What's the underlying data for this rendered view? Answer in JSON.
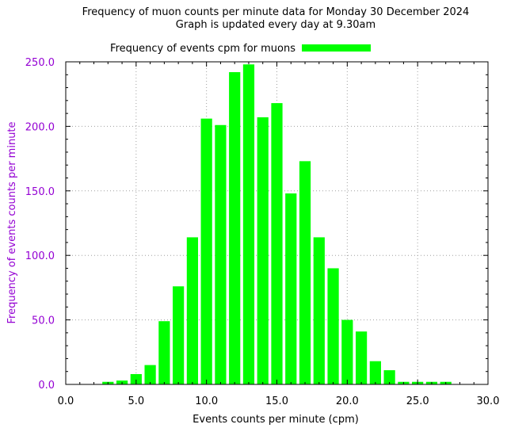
{
  "chart_data": {
    "type": "bar",
    "title": "Frequency of muon counts per minute data for Monday 30 December 2024",
    "subtitle": "Graph is updated every day at 9.30am",
    "xlabel": "Events counts per minute (cpm)",
    "ylabel": "Frequency of events counts per minute",
    "xlim": [
      0,
      30
    ],
    "ylim": [
      0,
      250
    ],
    "xticks": [
      "0.0",
      "5.0",
      "10.0",
      "15.0",
      "20.0",
      "25.0",
      "30.0"
    ],
    "yticks": [
      "0.0",
      "50.0",
      "100.0",
      "150.0",
      "200.0",
      "250.0"
    ],
    "grid": true,
    "legend_position": "top",
    "series": [
      {
        "name": "Frequency of events cpm for muons",
        "color": "#00ff00",
        "x": [
          3,
          4,
          5,
          6,
          7,
          8,
          9,
          10,
          11,
          12,
          13,
          14,
          15,
          16,
          17,
          18,
          19,
          20,
          21,
          22,
          23,
          24,
          25,
          26,
          27
        ],
        "values": [
          2,
          3,
          8,
          15,
          49,
          76,
          114,
          206,
          201,
          242,
          248,
          207,
          218,
          148,
          173,
          114,
          90,
          50,
          41,
          18,
          11,
          2,
          2,
          2,
          2
        ]
      }
    ],
    "colors": {
      "ytext": "#9400d3",
      "grid": "#a0a0a0",
      "axis": "#000000"
    }
  }
}
